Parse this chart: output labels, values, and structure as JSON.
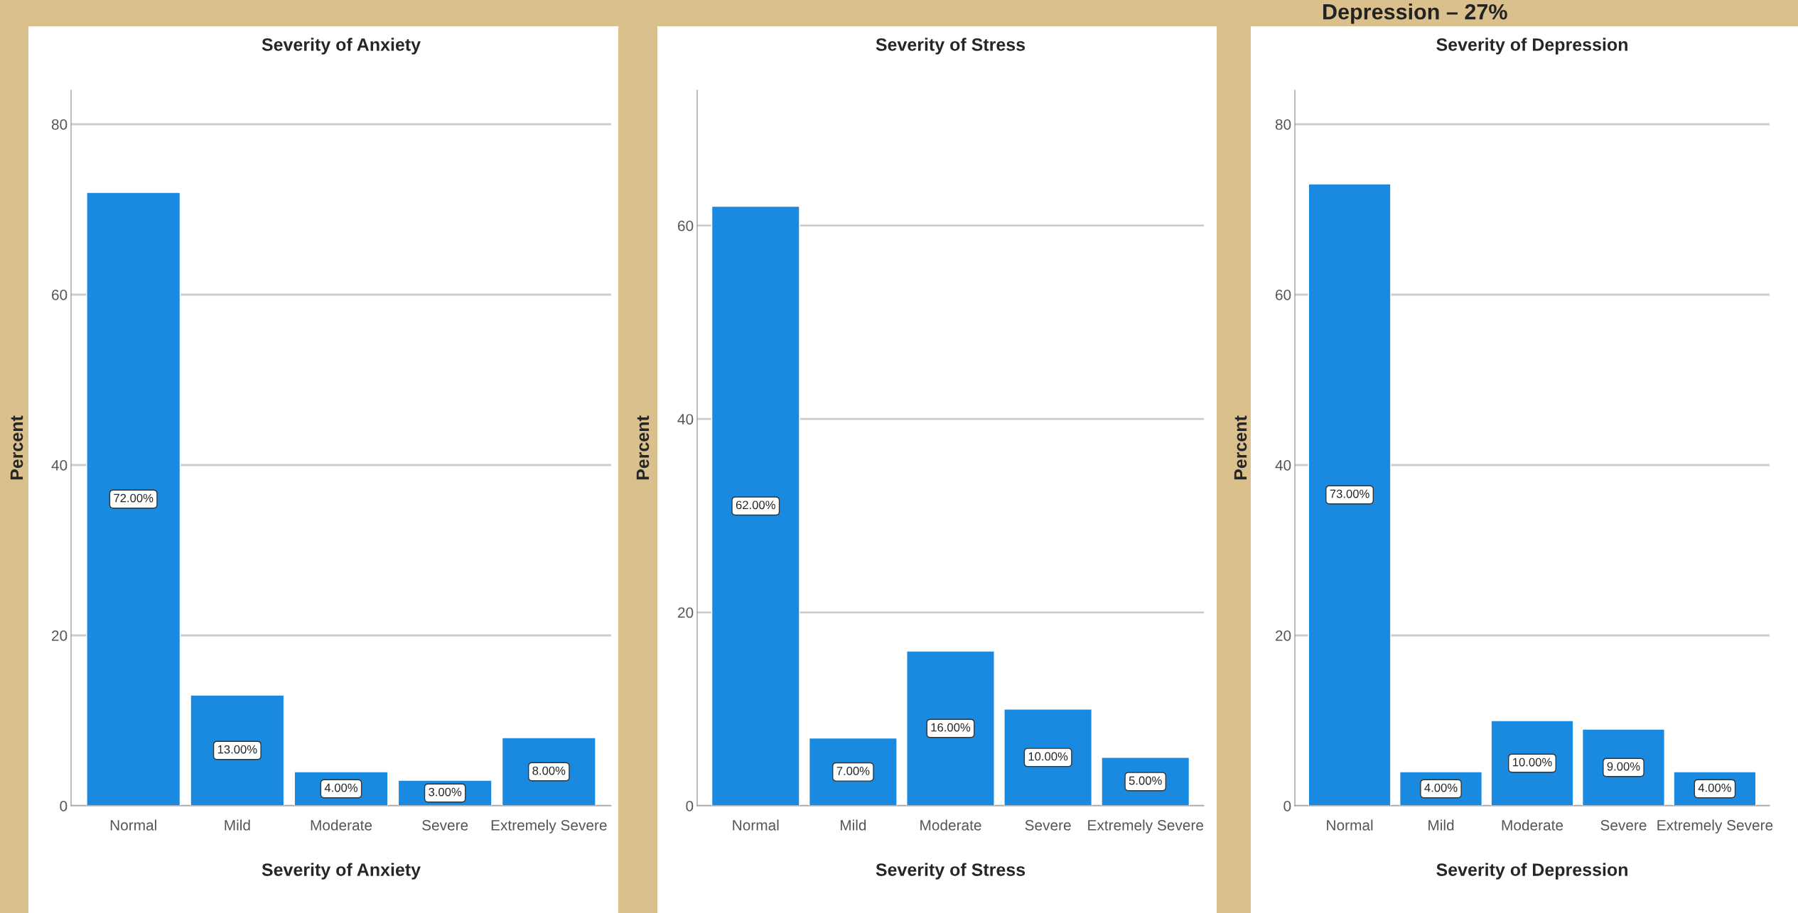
{
  "chart_data": [
    {
      "type": "bar",
      "title": "Severity of Anxiety",
      "xlabel": "Severity of Anxiety",
      "ylabel": "Percent",
      "categories": [
        "Normal",
        "Mild",
        "Moderate",
        "Severe",
        "Extremely Severe"
      ],
      "values": [
        72,
        13,
        4,
        3,
        8
      ],
      "value_labels": [
        "72.00%",
        "13.00%",
        "4.00%",
        "3.00%",
        "8.00%"
      ],
      "color": "#1a8ae0",
      "ylim": [
        0,
        84
      ],
      "yticks": [
        0,
        20,
        40,
        60,
        80
      ],
      "grid": "y"
    },
    {
      "type": "bar",
      "title": "Severity of Stress",
      "xlabel": "Severity of Stress",
      "ylabel": "Percent",
      "categories": [
        "Normal",
        "Mild",
        "Moderate",
        "Severe",
        "Extremely Severe"
      ],
      "values": [
        62,
        7,
        16,
        10,
        5
      ],
      "value_labels": [
        "62.00%",
        "7.00%",
        "16.00%",
        "10.00%",
        "5.00%"
      ],
      "color": "#1a8ae0",
      "ylim": [
        0,
        74
      ],
      "yticks": [
        0,
        20,
        40,
        60
      ],
      "grid": "y"
    },
    {
      "type": "bar",
      "title": "Severity of Depression",
      "xlabel": "Severity of Depression",
      "ylabel": "Percent",
      "categories": [
        "Normal",
        "Mild",
        "Moderate",
        "Severe",
        "Extremely Severe"
      ],
      "values": [
        73,
        4,
        10,
        9,
        4
      ],
      "value_labels": [
        "73.00%",
        "4.00%",
        "10.00%",
        "9.00%",
        "4.00%"
      ],
      "color": "#1a8ae0",
      "ylim": [
        0,
        84
      ],
      "yticks": [
        0,
        20,
        40,
        60,
        80
      ],
      "grid": "y",
      "annotations": [
        "Depression – 27%"
      ]
    }
  ]
}
